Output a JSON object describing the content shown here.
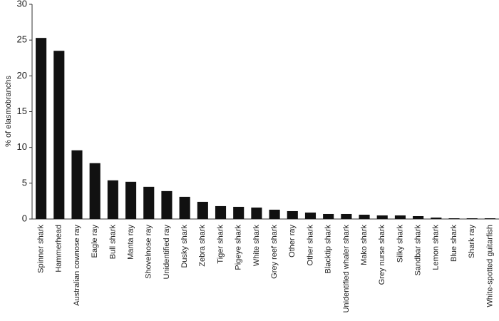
{
  "chart_data": {
    "type": "bar",
    "y_label": "% of elasmobranchs",
    "categories": [
      "Spinner shark",
      "Hammerhead",
      "Australian cownose ray",
      "Eagle ray",
      "Bull shark",
      "Manta ray",
      "Shovelnose ray",
      "Unidentified ray",
      "Dusky shark",
      "Zebra shark",
      "Tiger shark",
      "Pigeye shark",
      "White shark",
      "Grey reef shark",
      "Other ray",
      "Other shark",
      "Blacktip shark",
      "Unidentified whaler shark",
      "Mako shark",
      "Grey nurse shark",
      "Silky shark",
      "Sandbar shark",
      "Lemon shark",
      "Blue shark",
      "Shark ray",
      "White-spotted guitarfish"
    ],
    "values": [
      25.3,
      23.5,
      9.6,
      7.8,
      5.4,
      5.2,
      4.5,
      3.9,
      3.1,
      2.4,
      1.8,
      1.7,
      1.6,
      1.3,
      1.1,
      0.9,
      0.7,
      0.7,
      0.6,
      0.5,
      0.5,
      0.4,
      0.2,
      0.1,
      0.1,
      0.1
    ],
    "color": "#111111",
    "ylim": [
      0,
      30
    ],
    "yticks": [
      0,
      5,
      10,
      15,
      20,
      25,
      30
    ],
    "grid": false
  }
}
